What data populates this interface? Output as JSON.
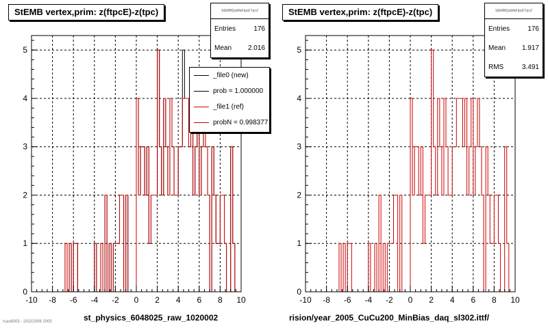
{
  "left": {
    "title": "StEMB  vertex,prim: z(ftpcE)-z(tpc)",
    "stats": {
      "header": "StEMBQaWaFtpcETpcZ",
      "rows": [
        {
          "label": "Entries",
          "value": "176"
        },
        {
          "label": "Mean",
          "value": "2.016"
        }
      ]
    },
    "legend": [
      {
        "label": "_file0 (new)",
        "color": "#000000"
      },
      {
        "label": "prob = 1.000000",
        "color": "#000000"
      },
      {
        "label": "_file1 (ref)",
        "color": "#cc0000"
      },
      {
        "label": "probN = 0.998377",
        "color": "#cc0000"
      }
    ],
    "xlabel": "st_physics_6048025_raw_1020002"
  },
  "right": {
    "title": "StEMB  vertex,prim: z(ftpcE)-z(tpc)",
    "stats": {
      "header": "StEMBQaWaFtpcETpcZ",
      "rows": [
        {
          "label": "Entries",
          "value": "176"
        },
        {
          "label": "Mean",
          "value": "1.917"
        },
        {
          "label": "RMS",
          "value": "3.491"
        }
      ]
    },
    "xlabel": "rision/year_2005_CuCu200_MinBias_daq_sl302.ittf/"
  },
  "footer": "rcas6003 - 2/02/2006 2005",
  "chart_data": [
    {
      "type": "bar",
      "title": "StEMB  vertex,prim: z(ftpcE)-z(tpc)",
      "xlabel": "st_physics_6048025_raw_1020002",
      "ylabel": "",
      "xlim": [
        -10,
        10
      ],
      "ylim": [
        0,
        5.3
      ],
      "xticks": [
        -10,
        -8,
        -6,
        -4,
        -2,
        0,
        2,
        4,
        6,
        8,
        10
      ],
      "yticks": [
        0,
        1,
        2,
        3,
        4,
        5
      ],
      "grid": true,
      "legend_position": "top-right",
      "bin_edges": [
        -10.0,
        -9.8,
        -9.6,
        -9.4,
        -9.2,
        -9.0,
        -8.8,
        -8.6,
        -8.4,
        -8.2,
        -8.0,
        -7.8,
        -7.6,
        -7.4,
        -7.2,
        -7.0,
        -6.8,
        -6.6,
        -6.4,
        -6.2,
        -6.0,
        -5.8,
        -5.6,
        -5.4,
        -5.2,
        -5.0,
        -4.8,
        -4.6,
        -4.4,
        -4.2,
        -4.0,
        -3.8,
        -3.6,
        -3.4,
        -3.2,
        -3.0,
        -2.8,
        -2.6,
        -2.4,
        -2.2,
        -2.0,
        -1.8,
        -1.6,
        -1.4,
        -1.2,
        -1.0,
        -0.8,
        -0.6,
        -0.4,
        -0.2,
        0.0,
        0.2,
        0.4,
        0.6,
        0.8,
        1.0,
        1.2,
        1.4,
        1.6,
        1.8,
        2.0,
        2.2,
        2.4,
        2.6,
        2.8,
        3.0,
        3.2,
        3.4,
        3.6,
        3.8,
        4.0,
        4.2,
        4.4,
        4.6,
        4.8,
        5.0,
        5.2,
        5.4,
        5.6,
        5.8,
        6.0,
        6.2,
        6.4,
        6.6,
        6.8,
        7.0,
        7.2,
        7.4,
        7.6,
        7.8,
        8.0,
        8.2,
        8.4,
        8.6,
        8.8,
        9.0,
        9.2,
        9.4,
        9.6,
        9.8,
        10.0
      ],
      "series": [
        {
          "name": "_file0 (new)",
          "color": "#000000",
          "values": [
            0,
            0,
            0,
            0,
            0,
            0,
            0,
            0,
            0,
            0,
            0,
            0,
            0,
            0,
            0,
            0,
            1,
            0,
            1,
            0,
            1,
            1,
            0,
            0,
            0,
            0,
            0,
            0,
            0,
            0,
            1,
            0,
            0,
            1,
            0,
            2,
            0,
            1,
            0,
            1,
            1,
            1,
            2,
            2,
            0,
            2,
            0,
            0,
            0,
            0,
            4,
            2,
            3,
            3,
            2,
            3,
            1,
            2,
            2,
            2,
            5,
            3,
            2,
            4,
            3,
            2,
            4,
            3,
            2,
            2,
            3,
            3,
            5,
            4,
            4,
            3,
            4,
            2,
            3,
            4,
            2,
            3,
            4,
            3,
            2,
            0,
            3,
            2,
            1,
            1,
            2,
            2,
            1,
            0,
            0,
            3,
            1,
            0,
            0,
            0
          ]
        },
        {
          "name": "_file1 (ref)",
          "color": "#cc0000",
          "values": [
            0,
            0,
            0,
            0,
            0,
            0,
            0,
            0,
            0,
            0,
            0,
            0,
            0,
            0,
            0,
            0,
            1,
            0,
            1,
            0,
            1,
            1,
            0,
            0,
            0,
            0,
            0,
            0,
            0,
            0,
            1,
            0,
            0,
            1,
            0,
            2,
            0,
            1,
            0,
            1,
            1,
            1,
            2,
            2,
            0,
            2,
            0,
            0,
            0,
            0,
            4,
            2,
            3,
            3,
            2,
            3,
            1,
            2,
            2,
            2,
            5,
            3,
            2,
            4,
            3,
            2,
            4,
            3,
            2,
            2,
            3,
            3,
            4,
            4,
            4,
            3,
            4,
            2,
            3,
            4,
            2,
            3,
            4,
            3,
            2,
            0,
            3,
            2,
            1,
            1,
            2,
            2,
            1,
            0,
            0,
            3,
            1,
            0,
            0,
            0
          ]
        }
      ]
    },
    {
      "type": "bar",
      "title": "StEMB  vertex,prim: z(ftpcE)-z(tpc)",
      "xlabel": "rision/year_2005_CuCu200_MinBias_daq_sl302.ittf/",
      "ylabel": "",
      "xlim": [
        -10,
        10
      ],
      "ylim": [
        0,
        5.3
      ],
      "xticks": [
        -10,
        -8,
        -6,
        -4,
        -2,
        0,
        2,
        4,
        6,
        8,
        10
      ],
      "yticks": [
        0,
        1,
        2,
        3,
        4,
        5
      ],
      "grid": true,
      "bin_edges": [
        -10.0,
        -9.8,
        -9.6,
        -9.4,
        -9.2,
        -9.0,
        -8.8,
        -8.6,
        -8.4,
        -8.2,
        -8.0,
        -7.8,
        -7.6,
        -7.4,
        -7.2,
        -7.0,
        -6.8,
        -6.6,
        -6.4,
        -6.2,
        -6.0,
        -5.8,
        -5.6,
        -5.4,
        -5.2,
        -5.0,
        -4.8,
        -4.6,
        -4.4,
        -4.2,
        -4.0,
        -3.8,
        -3.6,
        -3.4,
        -3.2,
        -3.0,
        -2.8,
        -2.6,
        -2.4,
        -2.2,
        -2.0,
        -1.8,
        -1.6,
        -1.4,
        -1.2,
        -1.0,
        -0.8,
        -0.6,
        -0.4,
        -0.2,
        0.0,
        0.2,
        0.4,
        0.6,
        0.8,
        1.0,
        1.2,
        1.4,
        1.6,
        1.8,
        2.0,
        2.2,
        2.4,
        2.6,
        2.8,
        3.0,
        3.2,
        3.4,
        3.6,
        3.8,
        4.0,
        4.2,
        4.4,
        4.6,
        4.8,
        5.0,
        5.2,
        5.4,
        5.6,
        5.8,
        6.0,
        6.2,
        6.4,
        6.6,
        6.8,
        7.0,
        7.2,
        7.4,
        7.6,
        7.8,
        8.0,
        8.2,
        8.4,
        8.6,
        8.8,
        9.0,
        9.2,
        9.4,
        9.6,
        9.8,
        10.0
      ],
      "series": [
        {
          "name": "_file1 (ref)",
          "color": "#cc0000",
          "values": [
            0,
            0,
            0,
            0,
            0,
            0,
            0,
            0,
            0,
            0,
            0,
            0,
            0,
            0,
            0,
            0,
            1,
            0,
            1,
            0,
            1,
            1,
            0,
            0,
            0,
            0,
            0,
            0,
            0,
            0,
            1,
            0,
            0,
            1,
            0,
            2,
            0,
            1,
            0,
            1,
            1,
            1,
            2,
            2,
            0,
            2,
            0,
            0,
            0,
            0,
            4,
            2,
            3,
            3,
            2,
            3,
            1,
            2,
            2,
            2,
            5,
            3,
            2,
            4,
            3,
            2,
            4,
            3,
            2,
            2,
            3,
            3,
            4,
            4,
            4,
            3,
            4,
            2,
            3,
            4,
            2,
            3,
            4,
            3,
            2,
            0,
            3,
            2,
            1,
            1,
            2,
            2,
            1,
            0,
            0,
            3,
            1,
            0,
            0,
            0
          ]
        }
      ]
    }
  ]
}
